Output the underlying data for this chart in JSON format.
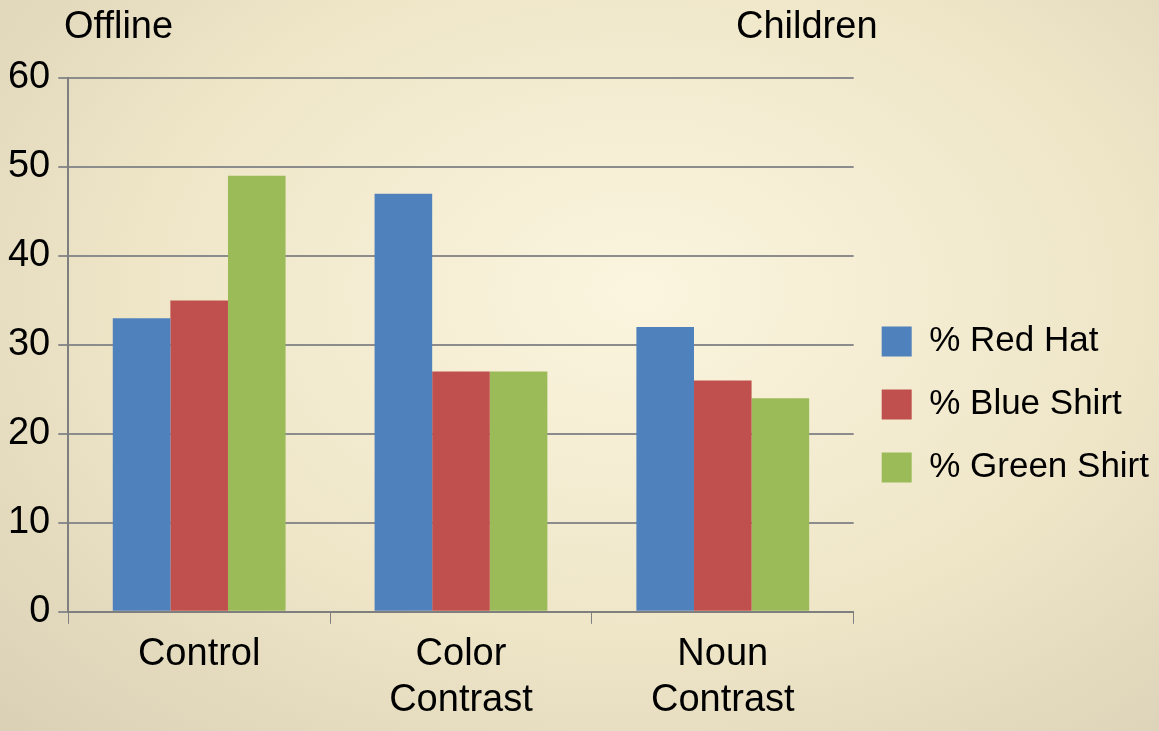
{
  "chart_data": {
    "type": "bar",
    "title": "Offline",
    "subtitle": "Children",
    "categories": [
      "Control",
      "Color Contrast",
      "Noun Contrast"
    ],
    "series": [
      {
        "name": "% Red Hat",
        "color": "#4f81bd",
        "values": [
          33,
          47,
          32
        ]
      },
      {
        "name": "% Blue Shirt",
        "color": "#c0504d",
        "values": [
          35,
          27,
          26
        ]
      },
      {
        "name": "% Green Shirt",
        "color": "#9bbb59",
        "values": [
          49,
          27,
          24
        ]
      }
    ],
    "ylim": [
      0,
      60
    ],
    "yticks": [
      0,
      10,
      20,
      30,
      40,
      50,
      60
    ],
    "grid": "y",
    "legend": "right"
  }
}
